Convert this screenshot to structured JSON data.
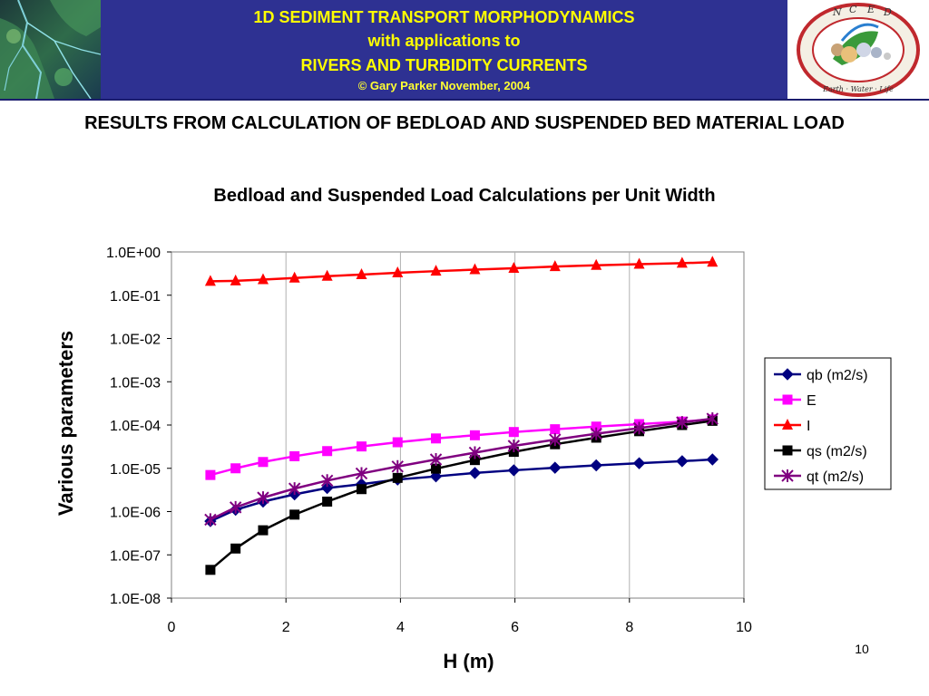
{
  "header": {
    "line1": "1D SEDIMENT TRANSPORT MORPHODYNAMICS",
    "line2": "with applications to",
    "line3": "RIVERS AND TURBIDITY CURRENTS",
    "line4": "© Gary Parker November, 2004",
    "logo_letters": [
      "N",
      "C",
      "E",
      "D"
    ],
    "logo_ring_text": "Earth · Water · Life"
  },
  "slide_title": "RESULTS FROM CALCULATION OF BEDLOAD AND SUSPENDED BED MATERIAL LOAD",
  "page_number": "10",
  "colors": {
    "header_band": "#2e3192",
    "header_text": "#ffff00",
    "qb": "#000080",
    "E": "#ff00ff",
    "I": "#ff0000",
    "qs": "#000000",
    "qt": "#800080"
  },
  "chart_data": {
    "type": "line",
    "title": "Bedload and Suspended Load Calculations per Unit Width",
    "xlabel": "H (m)",
    "ylabel": "Various parameters",
    "xlim": [
      0,
      10
    ],
    "ylim": [
      1e-08,
      1
    ],
    "y_scale": "log",
    "x_ticks": [
      "0",
      "2",
      "4",
      "6",
      "8",
      "10"
    ],
    "y_ticks": [
      "1.0E-08",
      "1.0E-07",
      "1.0E-06",
      "1.0E-05",
      "1.0E-04",
      "1.0E-03",
      "1.0E-02",
      "1.0E-01",
      "1.0E+00"
    ],
    "grid": "vertical",
    "legend": "right",
    "x": [
      0.68,
      1.12,
      1.6,
      2.15,
      2.72,
      3.32,
      3.95,
      4.62,
      5.3,
      5.98,
      6.7,
      7.42,
      8.17,
      8.92,
      9.45
    ],
    "series": [
      {
        "name": "qb (m2/s)",
        "color": "#000080",
        "marker": "diamond",
        "values": [
          6e-07,
          1.1e-06,
          1.7e-06,
          2.5e-06,
          3.5e-06,
          4.3e-06,
          5.5e-06,
          6.5e-06,
          7.8e-06,
          9e-06,
          1.03e-05,
          1.17e-05,
          1.31e-05,
          1.46e-05,
          1.6e-05
        ]
      },
      {
        "name": "E",
        "color": "#ff00ff",
        "marker": "square",
        "values": [
          7e-06,
          1e-05,
          1.4e-05,
          1.9e-05,
          2.5e-05,
          3.2e-05,
          4e-05,
          4.9e-05,
          5.8e-05,
          6.9e-05,
          8e-05,
          9.2e-05,
          0.000105,
          0.00012,
          0.000135
        ]
      },
      {
        "name": "I",
        "color": "#ff0000",
        "marker": "triangle",
        "values": [
          0.21,
          0.215,
          0.23,
          0.25,
          0.275,
          0.3,
          0.33,
          0.36,
          0.39,
          0.42,
          0.46,
          0.49,
          0.52,
          0.55,
          0.58
        ]
      },
      {
        "name": "qs (m2/s)",
        "color": "#000000",
        "marker": "square",
        "values": [
          4.5e-08,
          1.4e-07,
          3.7e-07,
          8.5e-07,
          1.7e-06,
          3.3e-06,
          6e-06,
          9.8e-06,
          1.55e-05,
          2.4e-05,
          3.6e-05,
          5.1e-05,
          7.2e-05,
          0.0001,
          0.000125
        ]
      },
      {
        "name": "qt (m2/s)",
        "color": "#800080",
        "marker": "star",
        "values": [
          6.5e-07,
          1.25e-06,
          2.1e-06,
          3.4e-06,
          5.2e-06,
          7.6e-06,
          1.1e-05,
          1.6e-05,
          2.3e-05,
          3.3e-05,
          4.6e-05,
          6.3e-05,
          8.5e-05,
          0.000115,
          0.00014
        ]
      }
    ]
  }
}
